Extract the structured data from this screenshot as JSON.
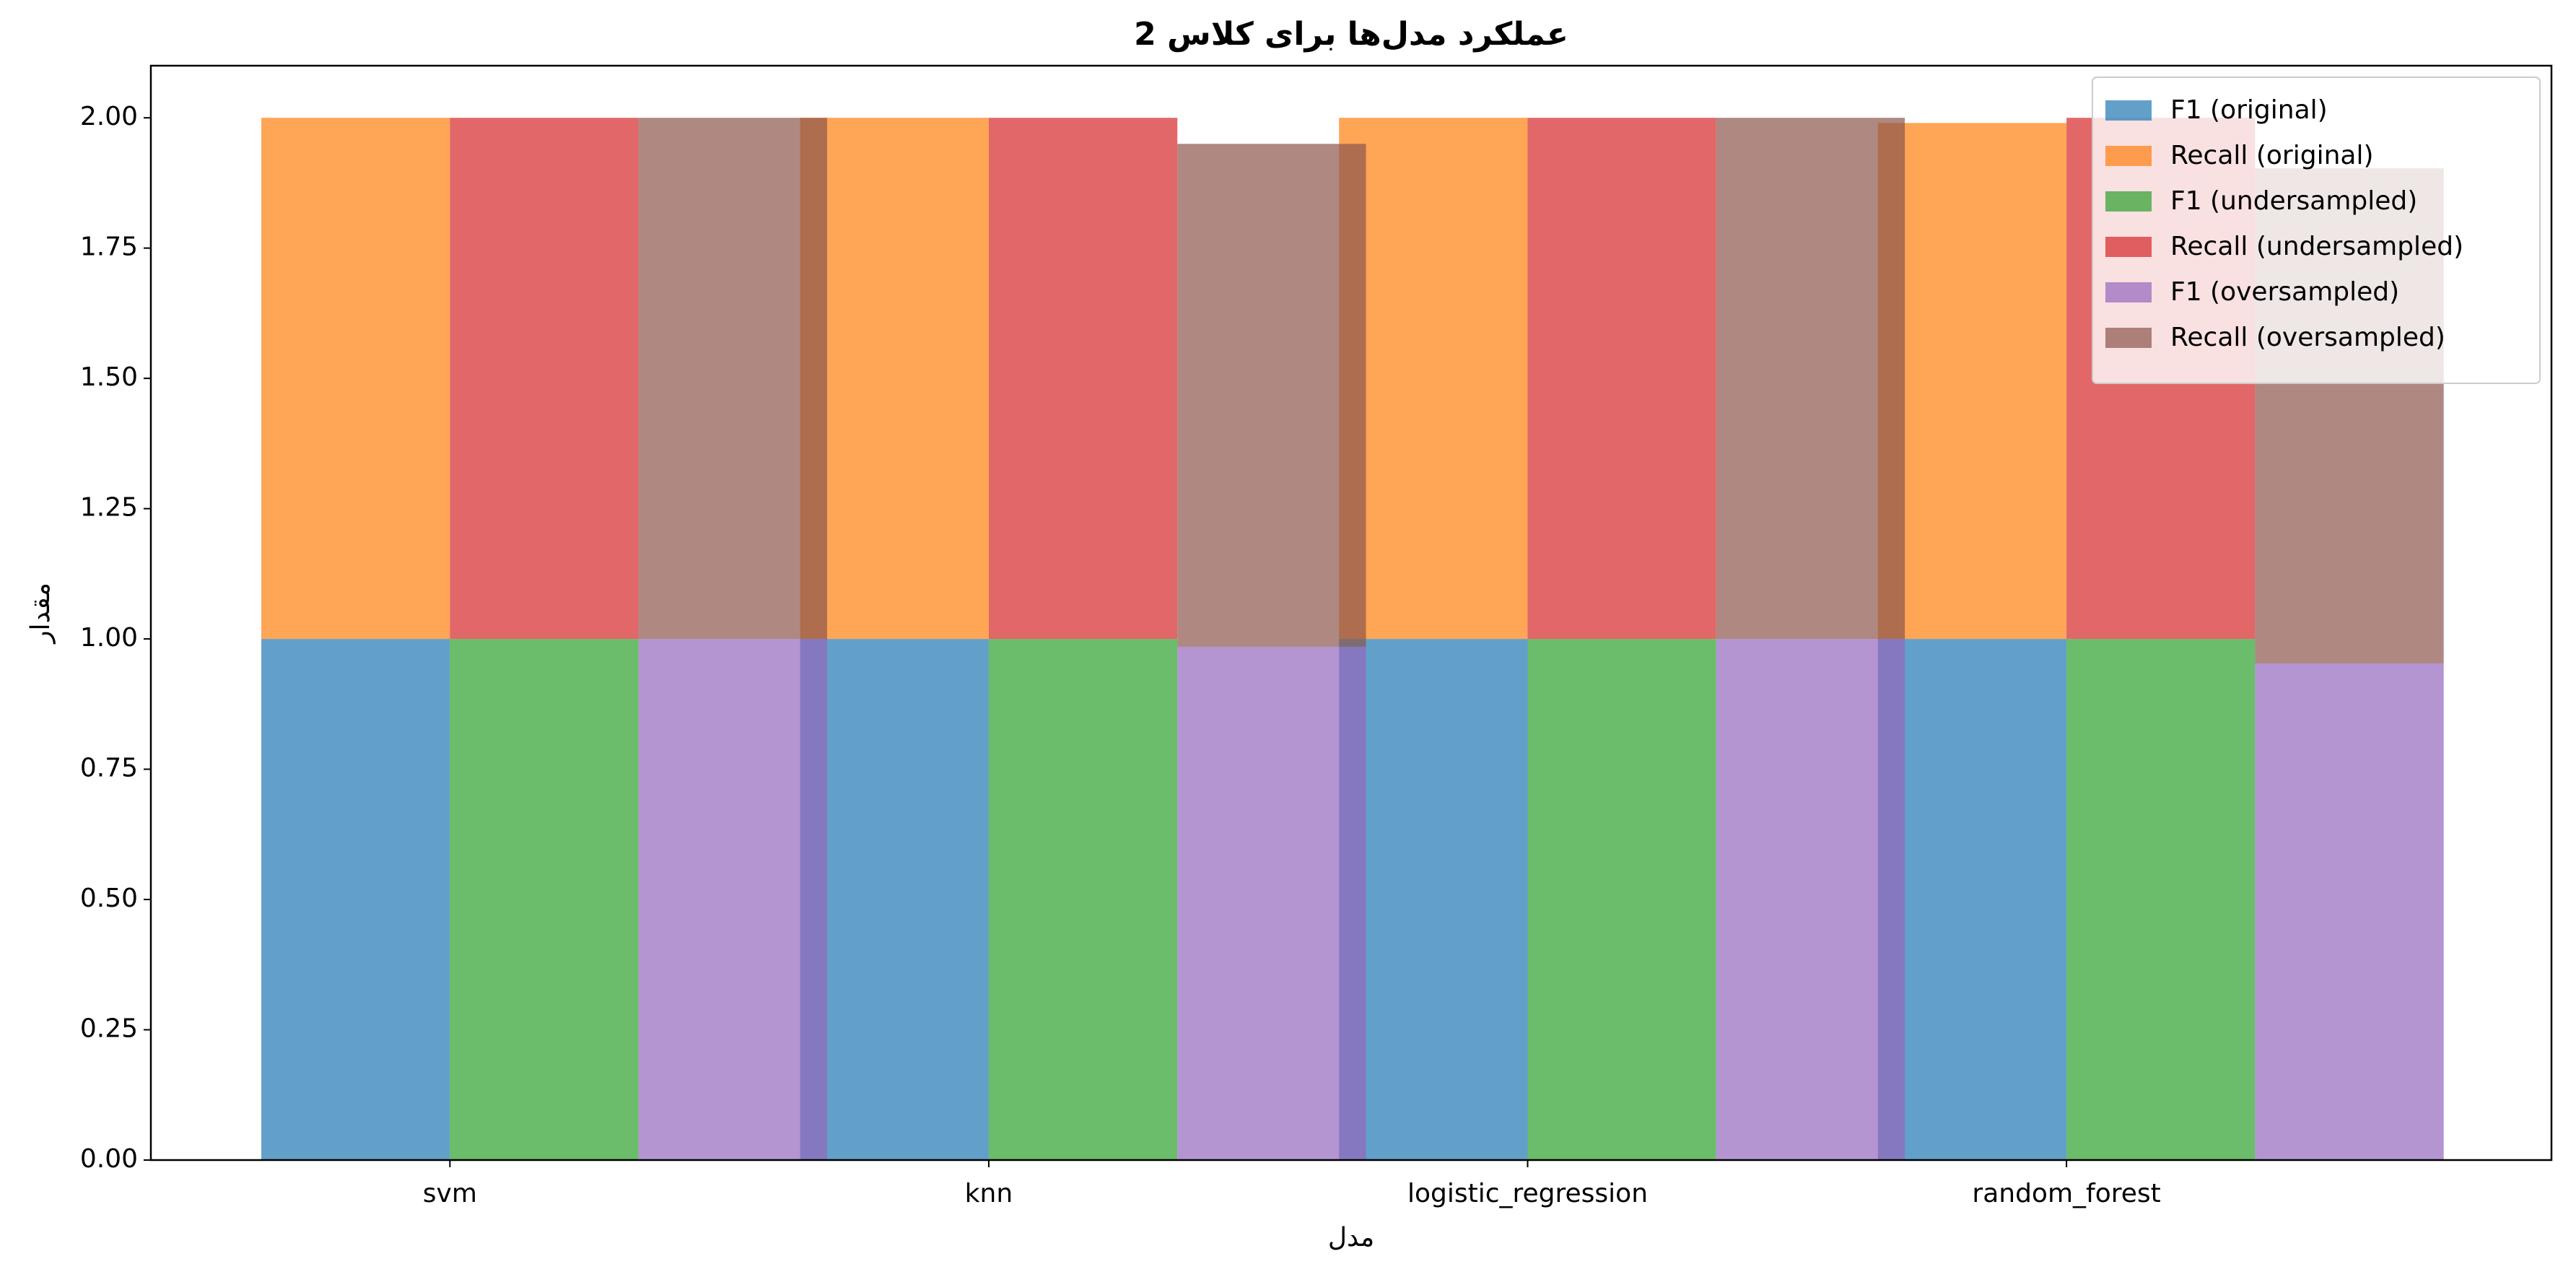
{
  "chart_data": {
    "type": "bar",
    "title": "عملکرد مدل‌ها برای کلاس 2",
    "x_label": "مدل",
    "y_label": "مقدار",
    "categories": [
      "svm",
      "knn",
      "logistic_regression",
      "random_forest"
    ],
    "series": [
      {
        "name": "F1 (original)",
        "color": "#1f77b4",
        "values": [
          1.0,
          1.0,
          1.0,
          1.0
        ]
      },
      {
        "name": "Recall (original)",
        "color": "#ff7f0e",
        "values": [
          1.0,
          1.0,
          1.0,
          0.99
        ]
      },
      {
        "name": "F1 (undersampled)",
        "color": "#2ca02c",
        "values": [
          1.0,
          1.0,
          1.0,
          1.0
        ]
      },
      {
        "name": "Recall (undersampled)",
        "color": "#d62728",
        "values": [
          1.0,
          1.0,
          1.0,
          1.0
        ]
      },
      {
        "name": "F1 (oversampled)",
        "color": "#9467bd",
        "values": [
          1.0,
          0.985,
          1.0,
          0.953
        ]
      },
      {
        "name": "Recall (oversampled)",
        "color": "#8c564b",
        "values": [
          1.0,
          0.965,
          1.0,
          0.95
        ]
      }
    ],
    "ylim": [
      0,
      2.1
    ],
    "yticks": [
      {
        "value": 0,
        "label": "0.00"
      },
      {
        "value": 0.25,
        "label": "0.25"
      },
      {
        "value": 0.5,
        "label": "0.50"
      },
      {
        "value": 0.75,
        "label": "0.75"
      },
      {
        "value": 1,
        "label": "1.00"
      },
      {
        "value": 1.25,
        "label": "1.25"
      },
      {
        "value": 1.5,
        "label": "1.50"
      },
      {
        "value": 1.75,
        "label": "1.75"
      },
      {
        "value": 2,
        "label": "2.00"
      }
    ],
    "legend": "upper right"
  }
}
